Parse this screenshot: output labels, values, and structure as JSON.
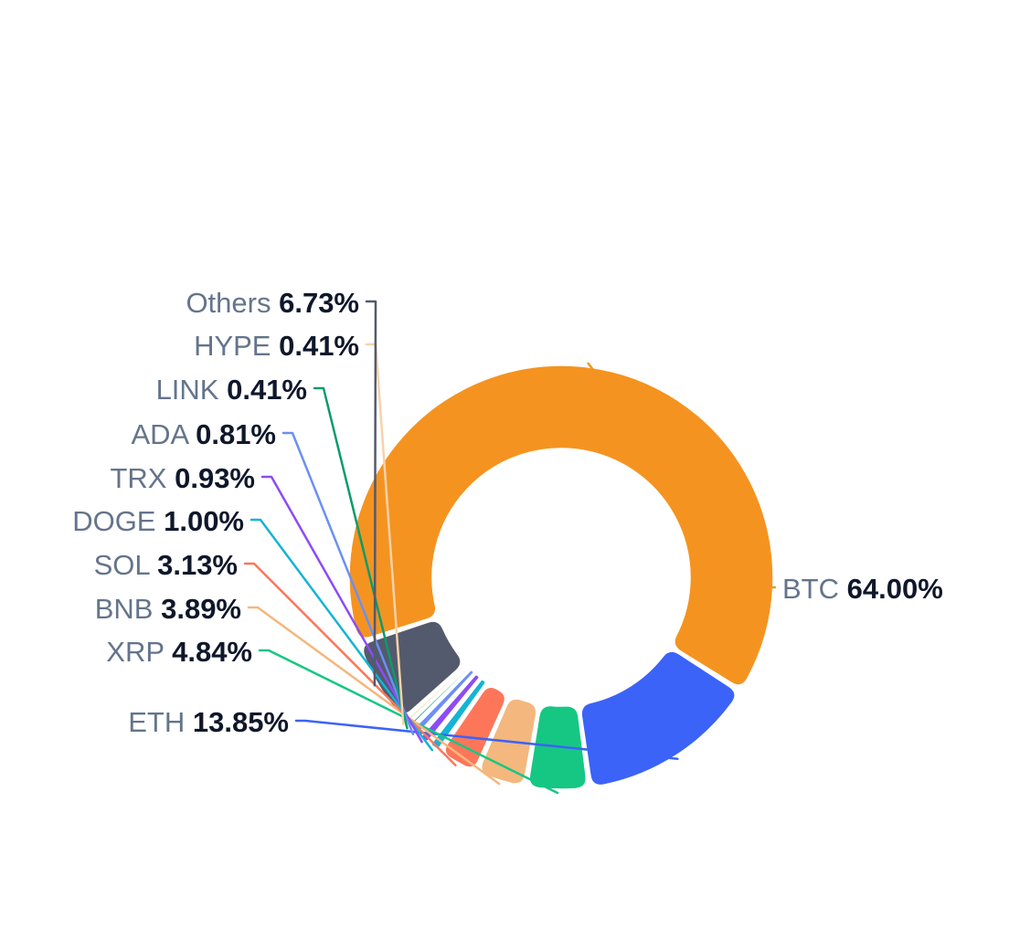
{
  "chart_data": {
    "type": "pie",
    "variant": "donut",
    "title": "",
    "slices": [
      {
        "label": "BTC",
        "value": 64.0,
        "display": "64.00%",
        "color": "#f59320"
      },
      {
        "label": "ETH",
        "value": 13.85,
        "display": "13.85%",
        "color": "#3b63f7"
      },
      {
        "label": "XRP",
        "value": 4.84,
        "display": "4.84%",
        "color": "#16c784"
      },
      {
        "label": "BNB",
        "value": 3.89,
        "display": "3.89%",
        "color": "#f4b77d"
      },
      {
        "label": "SOL",
        "value": 3.13,
        "display": "3.13%",
        "color": "#fd765a"
      },
      {
        "label": "DOGE",
        "value": 1.0,
        "display": "1.00%",
        "color": "#14b4d4"
      },
      {
        "label": "TRX",
        "value": 0.93,
        "display": "0.93%",
        "color": "#8d4bf5"
      },
      {
        "label": "ADA",
        "value": 0.81,
        "display": "0.81%",
        "color": "#6b8ff5"
      },
      {
        "label": "LINK",
        "value": 0.41,
        "display": "0.41%",
        "color": "#0b9b6b"
      },
      {
        "label": "HYPE",
        "value": 0.41,
        "display": "0.41%",
        "color": "#f6d2a8"
      },
      {
        "label": "Others",
        "value": 6.73,
        "display": "6.73%",
        "color": "#545a6d"
      }
    ],
    "legend": "none (labels attached to slices)"
  }
}
